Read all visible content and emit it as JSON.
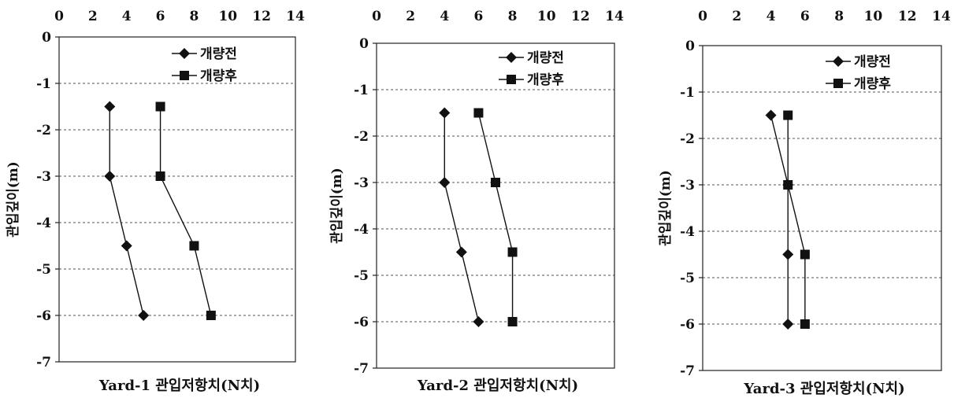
{
  "chart_data": [
    {
      "type": "line",
      "xlabel": "Yard-1 관입저항치(N치)",
      "ylabel": "관입깊이(m)",
      "xlim": [
        0,
        14
      ],
      "ylim": [
        -7,
        0
      ],
      "x_ticks": [
        "0",
        "2",
        "4",
        "6",
        "8",
        "10",
        "12",
        "14"
      ],
      "y_ticks": [
        "0",
        "-1",
        "-2",
        "-3",
        "-4",
        "-5",
        "-6",
        "-7"
      ],
      "x_axis_position": "top",
      "grid": "horizontal dashed",
      "legend_position": "top-right",
      "series": [
        {
          "name": "개량전",
          "marker": "diamond",
          "points": [
            [
              3,
              -1.5
            ],
            [
              3,
              -3
            ],
            [
              4,
              -4.5
            ],
            [
              5,
              -6
            ]
          ]
        },
        {
          "name": "개량후",
          "marker": "square",
          "points": [
            [
              6,
              -1.5
            ],
            [
              6,
              -3
            ],
            [
              8,
              -4.5
            ],
            [
              9,
              -6
            ]
          ]
        }
      ]
    },
    {
      "type": "line",
      "xlabel": "Yard-2 관입저항치(N치)",
      "ylabel": "관입깊이(m)",
      "xlim": [
        0,
        14
      ],
      "ylim": [
        -7,
        0
      ],
      "x_ticks": [
        "0",
        "2",
        "4",
        "6",
        "8",
        "10",
        "12",
        "14"
      ],
      "y_ticks": [
        "0",
        "-1",
        "-2",
        "-3",
        "-4",
        "-5",
        "-6",
        "-7"
      ],
      "x_axis_position": "top",
      "grid": "horizontal dashed",
      "legend_position": "top-right",
      "series": [
        {
          "name": "개량전",
          "marker": "diamond",
          "points": [
            [
              4,
              -1.5
            ],
            [
              4,
              -3
            ],
            [
              5,
              -4.5
            ],
            [
              6,
              -6
            ]
          ]
        },
        {
          "name": "개량후",
          "marker": "square",
          "points": [
            [
              6,
              -1.5
            ],
            [
              7,
              -3
            ],
            [
              8,
              -4.5
            ],
            [
              8,
              -6
            ]
          ]
        }
      ]
    },
    {
      "type": "line",
      "xlabel": "Yard-3 관입저항치(N치)",
      "ylabel": "관입깊이(m)",
      "xlim": [
        0,
        14
      ],
      "ylim": [
        -7,
        0
      ],
      "x_ticks": [
        "0",
        "2",
        "4",
        "6",
        "8",
        "10",
        "12",
        "14"
      ],
      "y_ticks": [
        "0",
        "-1",
        "-2",
        "-3",
        "-4",
        "-5",
        "-6",
        "-7"
      ],
      "x_axis_position": "top",
      "grid": "horizontal dashed",
      "legend_position": "top-right",
      "series": [
        {
          "name": "개량전",
          "marker": "diamond",
          "points": [
            [
              4,
              -1.5
            ],
            [
              5,
              -3
            ],
            [
              5,
              -4.5
            ],
            [
              5,
              -6
            ]
          ]
        },
        {
          "name": "개량후",
          "marker": "square",
          "points": [
            [
              5,
              -1.5
            ],
            [
              5,
              -3
            ],
            [
              6,
              -4.5
            ],
            [
              6,
              -6
            ]
          ]
        }
      ]
    }
  ]
}
